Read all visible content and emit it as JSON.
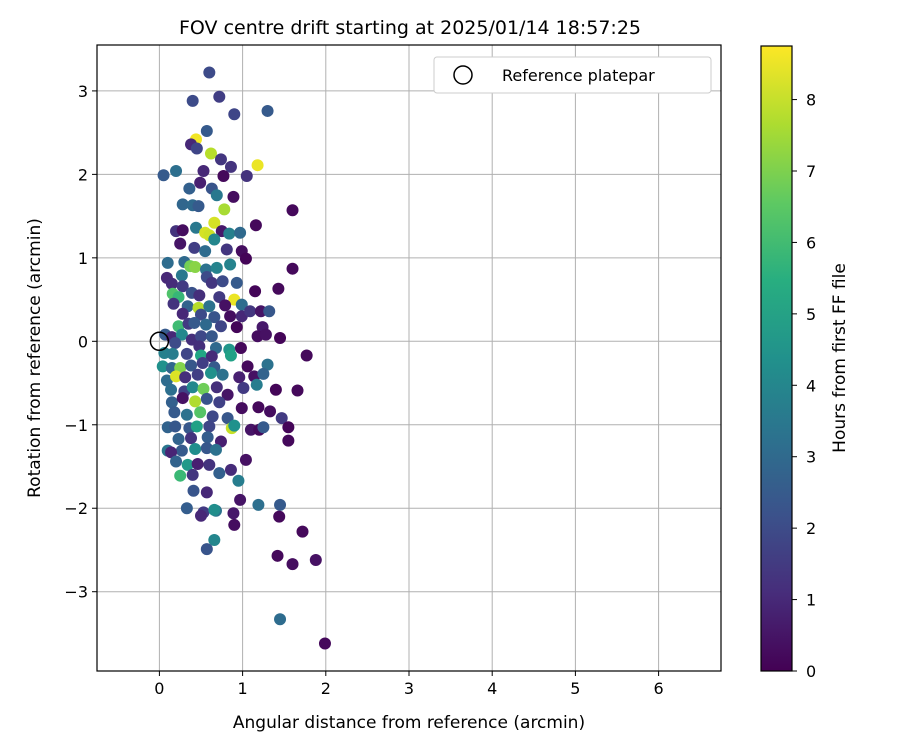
{
  "chart_data": {
    "type": "scatter",
    "title": "FOV centre drift starting at 2025/01/14 18:57:25",
    "xlabel": "Angular distance from reference (arcmin)",
    "ylabel": "Rotation from reference (arcmin)",
    "xlim": [
      -0.75,
      6.75
    ],
    "ylim": [
      -3.95,
      3.55
    ],
    "xticks": [
      0,
      1,
      2,
      3,
      4,
      5,
      6
    ],
    "yticks": [
      -3,
      -2,
      -1,
      0,
      1,
      2,
      3
    ],
    "xtick_labels": [
      "0",
      "1",
      "2",
      "3",
      "4",
      "5",
      "6"
    ],
    "ytick_labels": [
      "−3",
      "−2",
      "−1",
      "0",
      "1",
      "2",
      "3"
    ],
    "grid": true,
    "legend": {
      "position": "top-right",
      "entries": [
        "Reference platepar"
      ]
    },
    "reference_point": {
      "x": 0,
      "y": 0
    },
    "colorbar": {
      "label": "Hours from first FF file",
      "range": [
        0,
        8.75
      ],
      "ticks": [
        0,
        1,
        2,
        3,
        4,
        5,
        6,
        7,
        8
      ],
      "tick_labels": [
        "0",
        "1",
        "2",
        "3",
        "4",
        "5",
        "6",
        "7",
        "8"
      ],
      "colormap": "viridis"
    },
    "points": [
      [
        0.6,
        3.22,
        2.0
      ],
      [
        0.72,
        2.93,
        1.6
      ],
      [
        1.3,
        2.76,
        2.5
      ],
      [
        0.4,
        2.88,
        2.0
      ],
      [
        0.9,
        2.72,
        1.8
      ],
      [
        0.57,
        2.52,
        2.5
      ],
      [
        0.44,
        2.42,
        8.6
      ],
      [
        0.38,
        2.36,
        1.0
      ],
      [
        0.45,
        2.31,
        1.8
      ],
      [
        0.62,
        2.25,
        7.8
      ],
      [
        0.74,
        2.18,
        1.4
      ],
      [
        1.18,
        2.11,
        8.5
      ],
      [
        0.05,
        1.99,
        2.5
      ],
      [
        0.2,
        2.04,
        3.2
      ],
      [
        0.53,
        2.04,
        1.0
      ],
      [
        0.86,
        2.09,
        1.3
      ],
      [
        0.77,
        1.98,
        0.2
      ],
      [
        1.05,
        1.98,
        1.3
      ],
      [
        0.49,
        1.9,
        0.8
      ],
      [
        0.36,
        1.83,
        2.7
      ],
      [
        0.63,
        1.83,
        2.3
      ],
      [
        0.69,
        1.75,
        3.5
      ],
      [
        0.89,
        1.73,
        0.3
      ],
      [
        0.78,
        1.58,
        7.6
      ],
      [
        0.28,
        1.64,
        2.9
      ],
      [
        0.4,
        1.63,
        3.0
      ],
      [
        0.47,
        1.62,
        2.5
      ],
      [
        1.6,
        1.57,
        0.2
      ],
      [
        0.66,
        1.42,
        8.2
      ],
      [
        0.44,
        1.36,
        3.5
      ],
      [
        1.16,
        1.39,
        0.2
      ],
      [
        0.2,
        1.32,
        1.3
      ],
      [
        0.28,
        1.33,
        0.3
      ],
      [
        0.55,
        1.3,
        8.2
      ],
      [
        0.6,
        1.27,
        8.1
      ],
      [
        0.75,
        1.32,
        0.6
      ],
      [
        0.84,
        1.29,
        3.8
      ],
      [
        0.97,
        1.3,
        3.0
      ],
      [
        0.66,
        1.22,
        4.0
      ],
      [
        0.25,
        1.17,
        0.5
      ],
      [
        0.42,
        1.12,
        1.6
      ],
      [
        0.55,
        1.08,
        3.1
      ],
      [
        0.81,
        1.1,
        1.4
      ],
      [
        0.99,
        1.08,
        0.3
      ],
      [
        1.04,
        0.99,
        0.1
      ],
      [
        0.1,
        0.94,
        3.1
      ],
      [
        0.3,
        0.95,
        3.0
      ],
      [
        0.37,
        0.9,
        6.9
      ],
      [
        0.43,
        0.89,
        7.2
      ],
      [
        0.56,
        0.86,
        3.3
      ],
      [
        0.69,
        0.88,
        3.9
      ],
      [
        0.85,
        0.92,
        3.9
      ],
      [
        1.6,
        0.87,
        0.2
      ],
      [
        0.27,
        0.79,
        3.5
      ],
      [
        0.57,
        0.77,
        2.0
      ],
      [
        0.63,
        0.7,
        1.4
      ],
      [
        0.76,
        0.72,
        2.0
      ],
      [
        0.93,
        0.7,
        2.5
      ],
      [
        0.09,
        0.76,
        1.0
      ],
      [
        0.15,
        0.69,
        1.1
      ],
      [
        0.28,
        0.66,
        1.5
      ],
      [
        1.43,
        0.63,
        0.2
      ],
      [
        1.15,
        0.6,
        0.1
      ],
      [
        0.16,
        0.57,
        6.3
      ],
      [
        0.23,
        0.53,
        5.8
      ],
      [
        0.39,
        0.58,
        2.2
      ],
      [
        0.48,
        0.55,
        1.2
      ],
      [
        0.72,
        0.53,
        1.5
      ],
      [
        0.9,
        0.5,
        8.5
      ],
      [
        0.99,
        0.44,
        3.1
      ],
      [
        0.17,
        0.45,
        1.3
      ],
      [
        0.34,
        0.42,
        2.8
      ],
      [
        0.47,
        0.4,
        7.8
      ],
      [
        0.6,
        0.42,
        3.3
      ],
      [
        0.79,
        0.43,
        0.4
      ],
      [
        0.28,
        0.33,
        1.0
      ],
      [
        0.5,
        0.32,
        2.0
      ],
      [
        0.66,
        0.29,
        2.3
      ],
      [
        0.85,
        0.3,
        0.3
      ],
      [
        0.99,
        0.3,
        1.0
      ],
      [
        1.09,
        0.36,
        1.4
      ],
      [
        1.22,
        0.36,
        0.5
      ],
      [
        1.32,
        0.36,
        2.4
      ],
      [
        0.23,
        0.18,
        6.0
      ],
      [
        0.35,
        0.21,
        1.5
      ],
      [
        0.42,
        0.22,
        2.5
      ],
      [
        0.56,
        0.2,
        3.0
      ],
      [
        0.74,
        0.18,
        1.8
      ],
      [
        0.93,
        0.17,
        0.1
      ],
      [
        1.24,
        0.17,
        0.6
      ],
      [
        0.07,
        0.08,
        2.5
      ],
      [
        0.15,
        0.05,
        1.0
      ],
      [
        0.27,
        0.08,
        4.1
      ],
      [
        0.39,
        0.02,
        1.2
      ],
      [
        0.5,
        0.06,
        1.9
      ],
      [
        0.63,
        0.06,
        2.4
      ],
      [
        1.18,
        0.06,
        0.3
      ],
      [
        1.28,
        0.08,
        0.4
      ],
      [
        1.45,
        0.04,
        0.1
      ],
      [
        0.19,
        -0.02,
        2.0
      ],
      [
        0.48,
        -0.06,
        1.2
      ],
      [
        0.68,
        -0.08,
        3.0
      ],
      [
        0.84,
        -0.1,
        4.6
      ],
      [
        0.98,
        -0.08,
        0.2
      ],
      [
        0.06,
        -0.14,
        3.8
      ],
      [
        0.16,
        -0.15,
        3.7
      ],
      [
        0.33,
        -0.15,
        1.8
      ],
      [
        0.5,
        -0.17,
        5.2
      ],
      [
        0.63,
        -0.18,
        1.1
      ],
      [
        0.86,
        -0.17,
        5.0
      ],
      [
        1.3,
        -0.28,
        3.3
      ],
      [
        1.77,
        -0.17,
        0.2
      ],
      [
        0.04,
        -0.3,
        4.4
      ],
      [
        0.15,
        -0.32,
        2.9
      ],
      [
        0.25,
        -0.32,
        7.1
      ],
      [
        0.38,
        -0.29,
        2.4
      ],
      [
        0.52,
        -0.26,
        1.6
      ],
      [
        0.66,
        -0.31,
        2.5
      ],
      [
        1.06,
        -0.3,
        0.2
      ],
      [
        0.09,
        -0.47,
        3.1
      ],
      [
        0.2,
        -0.42,
        8.3
      ],
      [
        0.31,
        -0.43,
        1.2
      ],
      [
        0.46,
        -0.4,
        1.6
      ],
      [
        0.62,
        -0.38,
        4.4
      ],
      [
        0.76,
        -0.4,
        3.3
      ],
      [
        0.96,
        -0.43,
        0.8
      ],
      [
        1.14,
        -0.42,
        0.4
      ],
      [
        1.25,
        -0.39,
        2.8
      ],
      [
        0.14,
        -0.58,
        3.2
      ],
      [
        0.3,
        -0.6,
        1.7
      ],
      [
        0.4,
        -0.55,
        4.1
      ],
      [
        0.53,
        -0.57,
        6.8
      ],
      [
        0.69,
        -0.55,
        1.2
      ],
      [
        0.82,
        -0.64,
        0.5
      ],
      [
        1.01,
        -0.56,
        1.5
      ],
      [
        1.17,
        -0.52,
        3.7
      ],
      [
        1.4,
        -0.58,
        0.1
      ],
      [
        1.66,
        -0.59,
        0.2
      ],
      [
        0.15,
        -0.73,
        2.7
      ],
      [
        0.28,
        -0.68,
        0.4
      ],
      [
        0.43,
        -0.72,
        7.7
      ],
      [
        0.57,
        -0.69,
        2.3
      ],
      [
        0.72,
        -0.73,
        1.7
      ],
      [
        0.99,
        -0.8,
        0.3
      ],
      [
        1.19,
        -0.79,
        0.2
      ],
      [
        1.33,
        -0.84,
        0.3
      ],
      [
        1.47,
        -0.92,
        1.5
      ],
      [
        0.18,
        -0.85,
        2.5
      ],
      [
        0.33,
        -0.88,
        3.3
      ],
      [
        0.49,
        -0.85,
        6.4
      ],
      [
        0.64,
        -0.9,
        1.9
      ],
      [
        0.82,
        -0.92,
        2.4
      ],
      [
        1.1,
        -1.06,
        0.5
      ],
      [
        1.2,
        -1.06,
        0.2
      ],
      [
        1.25,
        -1.03,
        2.5
      ],
      [
        1.55,
        -1.03,
        0.1
      ],
      [
        0.1,
        -1.03,
        2.8
      ],
      [
        0.19,
        -1.02,
        2.4
      ],
      [
        0.36,
        -1.04,
        2.4
      ],
      [
        0.45,
        -1.02,
        5.0
      ],
      [
        0.6,
        -1.02,
        1.8
      ],
      [
        0.87,
        -1.04,
        8.0
      ],
      [
        0.9,
        -1.01,
        4.4
      ],
      [
        0.23,
        -1.17,
        2.8
      ],
      [
        0.38,
        -1.16,
        1.3
      ],
      [
        0.58,
        -1.15,
        2.6
      ],
      [
        0.74,
        -1.2,
        0.8
      ],
      [
        1.55,
        -1.19,
        0.2
      ],
      [
        0.1,
        -1.31,
        3.4
      ],
      [
        0.27,
        -1.31,
        2.5
      ],
      [
        0.43,
        -1.29,
        4.3
      ],
      [
        0.57,
        -1.28,
        2.4
      ],
      [
        0.68,
        -1.3,
        3.3
      ],
      [
        0.14,
        -1.33,
        0.9
      ],
      [
        0.2,
        -1.44,
        2.8
      ],
      [
        0.34,
        -1.48,
        4.7
      ],
      [
        0.46,
        -1.47,
        0.8
      ],
      [
        0.6,
        -1.48,
        1.3
      ],
      [
        1.04,
        -1.42,
        0.4
      ],
      [
        0.25,
        -1.61,
        5.9
      ],
      [
        0.4,
        -1.6,
        1.4
      ],
      [
        0.72,
        -1.58,
        2.7
      ],
      [
        0.86,
        -1.54,
        1.1
      ],
      [
        0.95,
        -1.67,
        3.7
      ],
      [
        0.41,
        -1.79,
        2.3
      ],
      [
        0.57,
        -1.81,
        1.0
      ],
      [
        0.97,
        -1.9,
        0.5
      ],
      [
        0.33,
        -2.0,
        2.6
      ],
      [
        0.53,
        -2.05,
        1.5
      ],
      [
        0.68,
        -2.03,
        3.3
      ],
      [
        0.89,
        -2.06,
        0.6
      ],
      [
        1.19,
        -1.96,
        3.2
      ],
      [
        1.45,
        -1.96,
        2.5
      ],
      [
        0.5,
        -2.09,
        1.0
      ],
      [
        0.66,
        -2.02,
        4.3
      ],
      [
        0.9,
        -2.2,
        0.3
      ],
      [
        1.44,
        -2.1,
        0.2
      ],
      [
        1.72,
        -2.28,
        0.2
      ],
      [
        0.66,
        -2.38,
        4.0
      ],
      [
        0.57,
        -2.49,
        2.3
      ],
      [
        1.42,
        -2.57,
        0.2
      ],
      [
        1.6,
        -2.67,
        0.3
      ],
      [
        1.88,
        -2.62,
        0.4
      ],
      [
        1.45,
        -3.33,
        3.1
      ],
      [
        1.99,
        -3.62,
        0.2
      ]
    ]
  }
}
